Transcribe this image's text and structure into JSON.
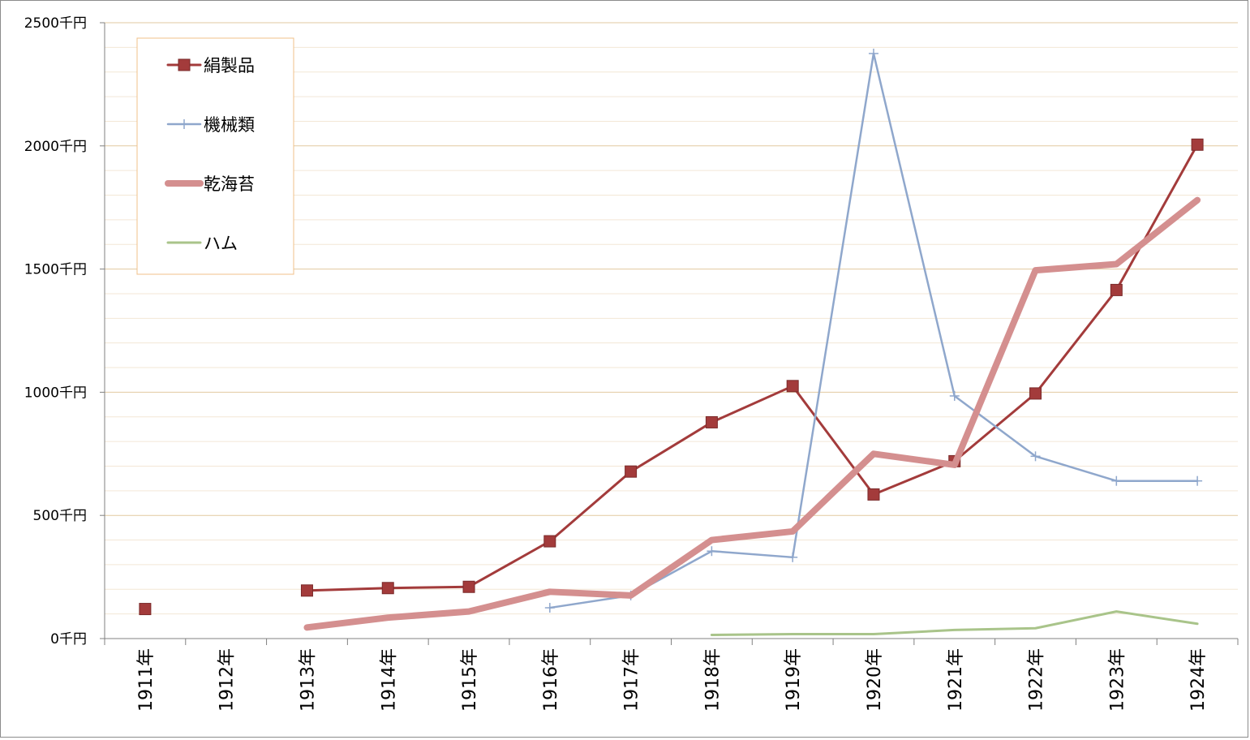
{
  "chart_data": {
    "type": "line",
    "title": "",
    "xlabel": "",
    "ylabel": "",
    "categories": [
      "1911年",
      "1912年",
      "1913年",
      "1914年",
      "1915年",
      "1916年",
      "1917年",
      "1918年",
      "1919年",
      "1920年",
      "1921年",
      "1922年",
      "1923年",
      "1924年"
    ],
    "y_ticks": [
      "0千円",
      "500千円",
      "1000千円",
      "1500千円",
      "2000千円",
      "2500千円"
    ],
    "ylim": [
      0,
      2500
    ],
    "y_major_step": 500,
    "y_minor_step": 100,
    "grid": true,
    "legend_position": "top-left",
    "series": [
      {
        "name": "絹製品",
        "color": "#a33b3b",
        "marker": "square",
        "values": [
          120,
          null,
          195,
          205,
          210,
          395,
          678,
          878,
          1025,
          585,
          720,
          995,
          1415,
          2005
        ]
      },
      {
        "name": "機械類",
        "color": "#8fa7cc",
        "marker": "plus",
        "values": [
          null,
          null,
          null,
          null,
          null,
          125,
          175,
          355,
          330,
          2375,
          985,
          740,
          640,
          640
        ]
      },
      {
        "name": "乾海苔",
        "color": "#d48f8f",
        "marker": "none",
        "values": [
          null,
          null,
          45,
          85,
          110,
          190,
          175,
          400,
          435,
          750,
          705,
          1495,
          1520,
          1780
        ]
      },
      {
        "name": "ハム",
        "color": "#a9c48a",
        "marker": "none",
        "values": [
          null,
          null,
          null,
          null,
          null,
          null,
          null,
          15,
          18,
          18,
          35,
          42,
          110,
          60
        ]
      }
    ]
  }
}
